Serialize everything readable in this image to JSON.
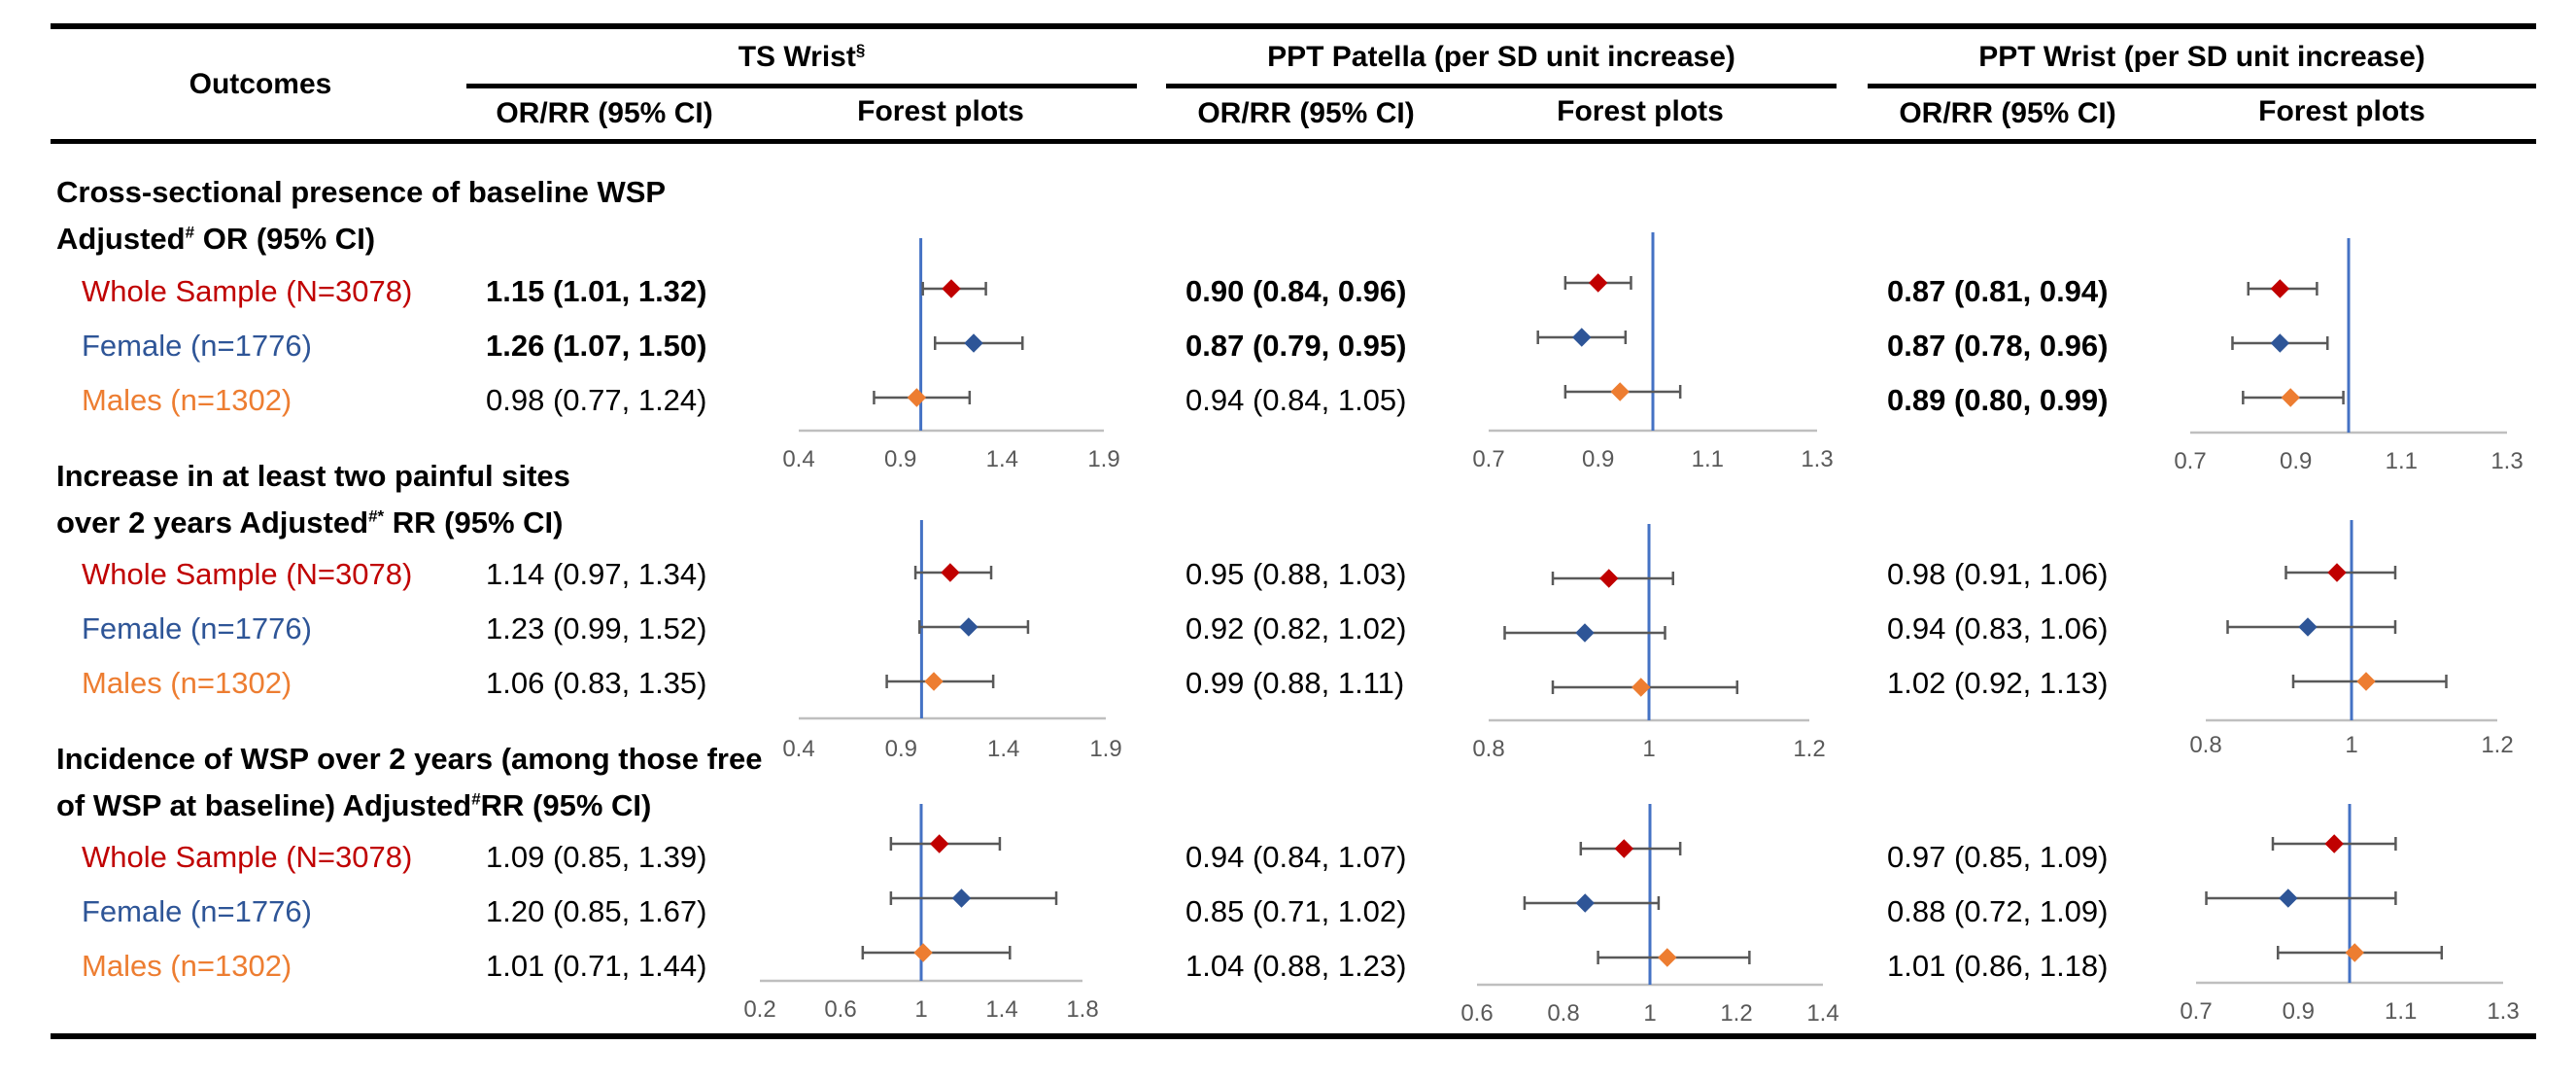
{
  "header": {
    "outcomes": "Outcomes",
    "groups": [
      {
        "title": "TS Wrist",
        "sup": "§"
      },
      {
        "title": "PPT Patella (per SD unit increase)",
        "sup": ""
      },
      {
        "title": "PPT Wrist (per SD unit increase)",
        "sup": ""
      }
    ],
    "sub_ci": "OR/RR (95% CI)",
    "sub_forest": "Forest plots"
  },
  "colors": {
    "whole": "#C00000",
    "female": "#2E5597",
    "males": "#ED7D31",
    "refline": "#4472C4",
    "axis": "#BFBFBF",
    "ci": "#595959"
  },
  "sections": [
    {
      "title_line1": "Cross-sectional presence of baseline WSP",
      "title_line2_pre": "Adjusted",
      "title_line2_sup": "#",
      "title_line2_post": " OR (95% CI)",
      "rows": [
        {
          "group": "Whole Sample (N=3078)",
          "values": [
            "1.15 (1.01, 1.32)",
            "0.90 (0.84, 0.96)",
            "0.87 (0.81, 0.94)"
          ],
          "bold": [
            true,
            true,
            true
          ]
        },
        {
          "group": "Female (n=1776)",
          "values": [
            "1.26 (1.07, 1.50)",
            "0.87 (0.79, 0.95)",
            "0.87 (0.78, 0.96)"
          ],
          "bold": [
            true,
            true,
            true
          ]
        },
        {
          "group": "Males (n=1302)",
          "values": [
            "0.98 (0.77, 1.24)",
            "0.94 (0.84, 1.05)",
            "0.89 (0.80, 0.99)"
          ],
          "bold": [
            false,
            false,
            true
          ]
        }
      ]
    },
    {
      "title_line1": "Increase in at least two painful sites",
      "title_line2_pre": "over 2 years Adjusted",
      "title_line2_sup": "#*",
      "title_line2_post": " RR (95% CI)",
      "rows": [
        {
          "group": "Whole Sample (N=3078)",
          "values": [
            "1.14 (0.97, 1.34)",
            "0.95 (0.88, 1.03)",
            "0.98 (0.91, 1.06)"
          ],
          "bold": [
            false,
            false,
            false
          ]
        },
        {
          "group": "Female (n=1776)",
          "values": [
            "1.23 (0.99, 1.52)",
            "0.92 (0.82, 1.02)",
            "0.94 (0.83, 1.06)"
          ],
          "bold": [
            false,
            false,
            false
          ]
        },
        {
          "group": "Males (n=1302)",
          "values": [
            "1.06 (0.83, 1.35)",
            "0.99 (0.88, 1.11)",
            "1.02 (0.92, 1.13)"
          ],
          "bold": [
            false,
            false,
            false
          ]
        }
      ]
    },
    {
      "title_line1": "Incidence of WSP over 2 years (among those free",
      "title_line2_pre": "of WSP at baseline) Adjusted",
      "title_line2_sup": "#",
      "title_line2_post": "RR (95% CI)",
      "rows": [
        {
          "group": "Whole Sample (N=3078)",
          "values": [
            "1.09 (0.85, 1.39)",
            "0.94 (0.84, 1.07)",
            "0.97 (0.85, 1.09)"
          ],
          "bold": [
            false,
            false,
            false
          ]
        },
        {
          "group": "Female (n=1776)",
          "values": [
            "1.20 (0.85, 1.67)",
            "0.85 (0.71, 1.02)",
            "0.88 (0.72, 1.09)"
          ],
          "bold": [
            false,
            false,
            false
          ]
        },
        {
          "group": "Males (n=1302)",
          "values": [
            "1.01 (0.71, 1.44)",
            "1.04 (0.88, 1.23)",
            "1.01 (0.86, 1.18)"
          ],
          "bold": [
            false,
            false,
            false
          ]
        }
      ]
    }
  ],
  "chart_data": {
    "type": "forest",
    "reference_value": 1,
    "series_names": [
      "Whole Sample (N=3078)",
      "Female (n=1776)",
      "Males (n=1302)"
    ],
    "panels": [
      {
        "section": 0,
        "measure": "TS Wrist",
        "xlim": [
          0.4,
          1.9
        ],
        "ticks": [
          "0.4",
          "0.9",
          "1.4",
          "1.9"
        ],
        "estimates": [
          [
            1.15,
            1.01,
            1.32
          ],
          [
            1.26,
            1.07,
            1.5
          ],
          [
            0.98,
            0.77,
            1.24
          ]
        ]
      },
      {
        "section": 0,
        "measure": "PPT Patella",
        "xlim": [
          0.7,
          1.3
        ],
        "ticks": [
          "0.7",
          "0.9",
          "1.1",
          "1.3"
        ],
        "estimates": [
          [
            0.9,
            0.84,
            0.96
          ],
          [
            0.87,
            0.79,
            0.95
          ],
          [
            0.94,
            0.84,
            1.05
          ]
        ]
      },
      {
        "section": 0,
        "measure": "PPT Wrist",
        "xlim": [
          0.7,
          1.3
        ],
        "ticks": [
          "0.7",
          "0.9",
          "1.1",
          "1.3"
        ],
        "estimates": [
          [
            0.87,
            0.81,
            0.94
          ],
          [
            0.87,
            0.78,
            0.96
          ],
          [
            0.89,
            0.8,
            0.99
          ]
        ]
      },
      {
        "section": 1,
        "measure": "TS Wrist",
        "xlim": [
          0.4,
          1.9
        ],
        "ticks": [
          "0.4",
          "0.9",
          "1.4",
          "1.9"
        ],
        "estimates": [
          [
            1.14,
            0.97,
            1.34
          ],
          [
            1.23,
            0.99,
            1.52
          ],
          [
            1.06,
            0.83,
            1.35
          ]
        ]
      },
      {
        "section": 1,
        "measure": "PPT Patella",
        "xlim": [
          0.8,
          1.2
        ],
        "ticks": [
          "0.8",
          "1",
          "1.2"
        ],
        "estimates": [
          [
            0.95,
            0.88,
            1.03
          ],
          [
            0.92,
            0.82,
            1.02
          ],
          [
            0.99,
            0.88,
            1.11
          ]
        ]
      },
      {
        "section": 1,
        "measure": "PPT Wrist",
        "xlim": [
          0.8,
          1.2
        ],
        "ticks": [
          "0.8",
          "1",
          "1.2"
        ],
        "estimates": [
          [
            0.98,
            0.91,
            1.06
          ],
          [
            0.94,
            0.83,
            1.06
          ],
          [
            1.02,
            0.92,
            1.13
          ]
        ]
      },
      {
        "section": 2,
        "measure": "TS Wrist",
        "xlim": [
          0.2,
          1.8
        ],
        "ticks": [
          "0.2",
          "0.6",
          "1",
          "1.4",
          "1.8"
        ],
        "estimates": [
          [
            1.09,
            0.85,
            1.39
          ],
          [
            1.2,
            0.85,
            1.67
          ],
          [
            1.01,
            0.71,
            1.44
          ]
        ]
      },
      {
        "section": 2,
        "measure": "PPT Patella",
        "xlim": [
          0.6,
          1.4
        ],
        "ticks": [
          "0.6",
          "0.8",
          "1",
          "1.2",
          "1.4"
        ],
        "estimates": [
          [
            0.94,
            0.84,
            1.07
          ],
          [
            0.85,
            0.71,
            1.02
          ],
          [
            1.04,
            0.88,
            1.23
          ]
        ]
      },
      {
        "section": 2,
        "measure": "PPT Wrist",
        "xlim": [
          0.7,
          1.3
        ],
        "ticks": [
          "0.7",
          "0.9",
          "1.1",
          "1.3"
        ],
        "estimates": [
          [
            0.97,
            0.85,
            1.09
          ],
          [
            0.88,
            0.72,
            1.09
          ],
          [
            1.01,
            0.86,
            1.18
          ]
        ]
      }
    ]
  }
}
